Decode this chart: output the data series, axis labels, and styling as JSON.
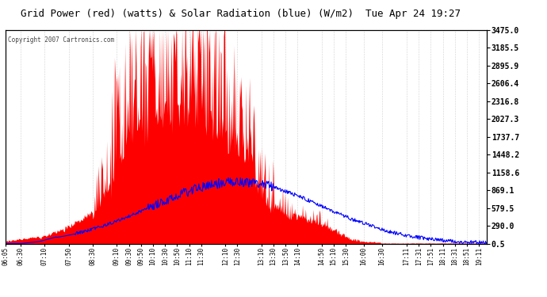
{
  "title": "Grid Power (red) (watts) & Solar Radiation (blue) (W/m2)  Tue Apr 24 19:27",
  "copyright": "Copyright 2007 Cartronics.com",
  "bg_color": "#ffffff",
  "plot_bg_color": "#ffffff",
  "grid_color": "#888888",
  "x_labels": [
    "06:05",
    "06:30",
    "07:10",
    "07:50",
    "08:30",
    "09:10",
    "09:30",
    "09:50",
    "10:10",
    "10:30",
    "10:50",
    "11:10",
    "11:30",
    "12:10",
    "12:30",
    "13:10",
    "13:30",
    "13:50",
    "14:10",
    "14:50",
    "15:10",
    "15:30",
    "16:00",
    "16:30",
    "17:11",
    "17:31",
    "17:51",
    "18:11",
    "18:31",
    "18:51",
    "19:11"
  ],
  "y_right_ticks": [
    0.5,
    290.0,
    579.5,
    869.1,
    1158.6,
    1448.2,
    1737.7,
    2027.3,
    2316.8,
    2606.4,
    2895.9,
    3185.5,
    3475.0
  ],
  "ymin": 0.5,
  "ymax": 3475.0,
  "red_color": "#ff0000",
  "blue_color": "#0000ff"
}
